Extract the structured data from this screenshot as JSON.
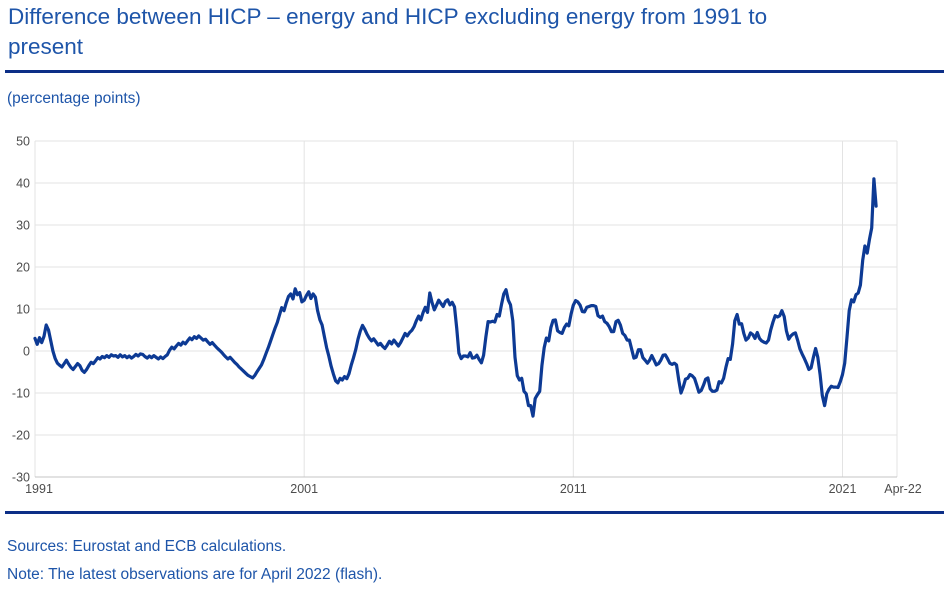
{
  "page": {
    "title": "Difference between HICP – energy and HICP excluding energy from 1991 to\npresent",
    "unit_label": "(percentage points)",
    "sources": "Sources: Eurostat and ECB calculations.",
    "note": "Note: The latest observations are for April 2022 (flash)."
  },
  "colors": {
    "title_text": "#1e55a9",
    "rule": "#0c2e87",
    "line": "#0d3a94",
    "grid": "#e3e3e3",
    "axis": "#c4c4c4",
    "axis_label": "#4d4d4d",
    "background": "#ffffff"
  },
  "chart_data": {
    "type": "line",
    "title": "Difference between HICP – energy and HICP excluding energy from 1991 to present",
    "xlabel": "",
    "ylabel": "(percentage points)",
    "x_start": "1991-01",
    "x_end": "2022-04",
    "frequency": "monthly",
    "grid": true,
    "legend": "none",
    "ylim": [
      -30,
      50
    ],
    "y_ticks": [
      50,
      40,
      30,
      20,
      10,
      0,
      -10,
      -20,
      -30
    ],
    "x_ticks": [
      {
        "label": "1991",
        "month": 0,
        "grid": true,
        "edge": false
      },
      {
        "label": "2001",
        "month": 120,
        "grid": true,
        "edge": false
      },
      {
        "label": "2011",
        "month": 240,
        "grid": true,
        "edge": false
      },
      {
        "label": "2021",
        "month": 360,
        "grid": true,
        "edge": false
      },
      {
        "label": "Apr-22",
        "month": 375,
        "grid": false,
        "edge": true
      }
    ],
    "series": [
      {
        "name": "HICP energy minus HICP excluding energy",
        "values": [
          3.0,
          1.6,
          3.2,
          2.0,
          3.5,
          6.2,
          5.0,
          2.5,
          0.0,
          -1.8,
          -2.9,
          -3.4,
          -3.8,
          -3.0,
          -2.2,
          -3.1,
          -3.9,
          -4.4,
          -3.7,
          -3.0,
          -3.5,
          -4.6,
          -5.1,
          -4.4,
          -3.5,
          -2.7,
          -3.0,
          -2.3,
          -1.6,
          -1.9,
          -1.3,
          -1.6,
          -1.1,
          -1.5,
          -0.9,
          -1.2,
          -1.1,
          -1.5,
          -0.9,
          -1.4,
          -1.1,
          -1.6,
          -1.2,
          -1.7,
          -1.3,
          -0.8,
          -1.2,
          -0.7,
          -0.8,
          -1.3,
          -1.7,
          -1.2,
          -1.6,
          -1.1,
          -1.5,
          -1.9,
          -1.4,
          -1.8,
          -1.3,
          -0.9,
          0.2,
          0.9,
          0.5,
          1.2,
          1.8,
          1.4,
          2.1,
          1.7,
          2.4,
          3.1,
          2.7,
          3.4,
          3.0,
          3.6,
          3.1,
          2.6,
          2.8,
          2.2,
          1.6,
          2.0,
          1.4,
          0.8,
          0.3,
          -0.2,
          -0.8,
          -1.4,
          -1.9,
          -1.5,
          -2.1,
          -2.7,
          -3.2,
          -3.8,
          -4.3,
          -4.8,
          -5.3,
          -5.8,
          -6.1,
          -6.4,
          -5.8,
          -4.9,
          -4.1,
          -3.3,
          -2.0,
          -0.6,
          0.8,
          2.3,
          3.9,
          5.4,
          6.8,
          8.6,
          10.3,
          9.6,
          11.4,
          13.0,
          13.6,
          12.4,
          14.8,
          13.4,
          13.9,
          11.7,
          12.1,
          13.2,
          14.1,
          12.5,
          13.6,
          12.8,
          9.6,
          7.4,
          6.2,
          3.4,
          0.8,
          -1.2,
          -3.6,
          -5.4,
          -7.1,
          -7.6,
          -6.5,
          -6.9,
          -6.1,
          -6.6,
          -5.4,
          -3.3,
          -1.6,
          0.4,
          2.8,
          4.7,
          6.1,
          5.2,
          4.0,
          3.1,
          2.4,
          2.9,
          2.2,
          1.4,
          1.8,
          1.1,
          0.6,
          1.4,
          2.3,
          1.7,
          2.6,
          1.9,
          1.2,
          2.0,
          3.1,
          4.2,
          3.6,
          4.4,
          4.9,
          5.8,
          7.2,
          8.3,
          7.4,
          9.1,
          10.4,
          9.2,
          13.8,
          11.6,
          9.8,
          10.9,
          12.1,
          11.3,
          10.6,
          11.8,
          12.2,
          11.0,
          11.6,
          10.5,
          5.5,
          -0.5,
          -1.8,
          -1.2,
          -1.2,
          -1.4,
          -0.4,
          -1.7,
          -1.6,
          -1.0,
          -2.0,
          -2.8,
          -1.0,
          3.4,
          7.0,
          6.9,
          7.1,
          6.9,
          8.7,
          8.3,
          11.2,
          13.6,
          14.6,
          12.1,
          11.0,
          7.2,
          -1.5,
          -5.9,
          -6.9,
          -6.5,
          -9.6,
          -10.2,
          -13.0,
          -13.0,
          -15.5,
          -11.3,
          -10.4,
          -9.6,
          -3.5,
          0.8,
          3.1,
          2.4,
          5.6,
          7.3,
          7.4,
          4.8,
          4.4,
          4.2,
          5.6,
          6.4,
          6.0,
          8.8,
          10.9,
          12.0,
          11.7,
          10.9,
          9.4,
          9.3,
          10.4,
          10.6,
          10.8,
          10.8,
          10.6,
          8.4,
          8.0,
          8.3,
          7.0,
          6.6,
          5.8,
          4.6,
          4.6,
          7.0,
          7.3,
          6.2,
          4.2,
          3.7,
          2.6,
          2.6,
          0.4,
          -1.7,
          -1.5,
          0.3,
          0.3,
          -1.6,
          -2.2,
          -2.9,
          -2.2,
          -1.1,
          -2.2,
          -3.3,
          -3.0,
          -2.2,
          -1.0,
          -0.9,
          -1.8,
          -2.9,
          -3.2,
          -2.9,
          -3.3,
          -7.0,
          -10.0,
          -8.6,
          -6.7,
          -6.5,
          -5.6,
          -5.9,
          -6.5,
          -8.1,
          -9.8,
          -9.4,
          -8.2,
          -6.7,
          -6.4,
          -9.0,
          -9.6,
          -9.6,
          -9.3,
          -7.3,
          -7.6,
          -6.5,
          -3.9,
          -1.8,
          -2.0,
          1.7,
          7.2,
          8.7,
          6.4,
          6.5,
          4.2,
          2.6,
          3.1,
          4.3,
          3.9,
          3.0,
          4.4,
          3.0,
          2.4,
          2.1,
          1.9,
          2.6,
          5.0,
          6.9,
          8.4,
          8.1,
          8.4,
          9.6,
          8.2,
          4.8,
          2.8,
          3.6,
          4.1,
          4.3,
          2.6,
          0.5,
          -0.7,
          -1.8,
          -3.0,
          -4.4,
          -4.0,
          -1.6,
          0.6,
          -1.5,
          -5.6,
          -10.6,
          -13.0,
          -10.2,
          -9.1,
          -8.4,
          -8.6,
          -8.6,
          -8.7,
          -7.3,
          -5.6,
          -2.9,
          3.3,
          9.6,
          12.2,
          11.7,
          13.4,
          13.8,
          15.7,
          21.6,
          25.0,
          23.3,
          26.5,
          29.3,
          41.0,
          34.5
        ]
      }
    ]
  }
}
